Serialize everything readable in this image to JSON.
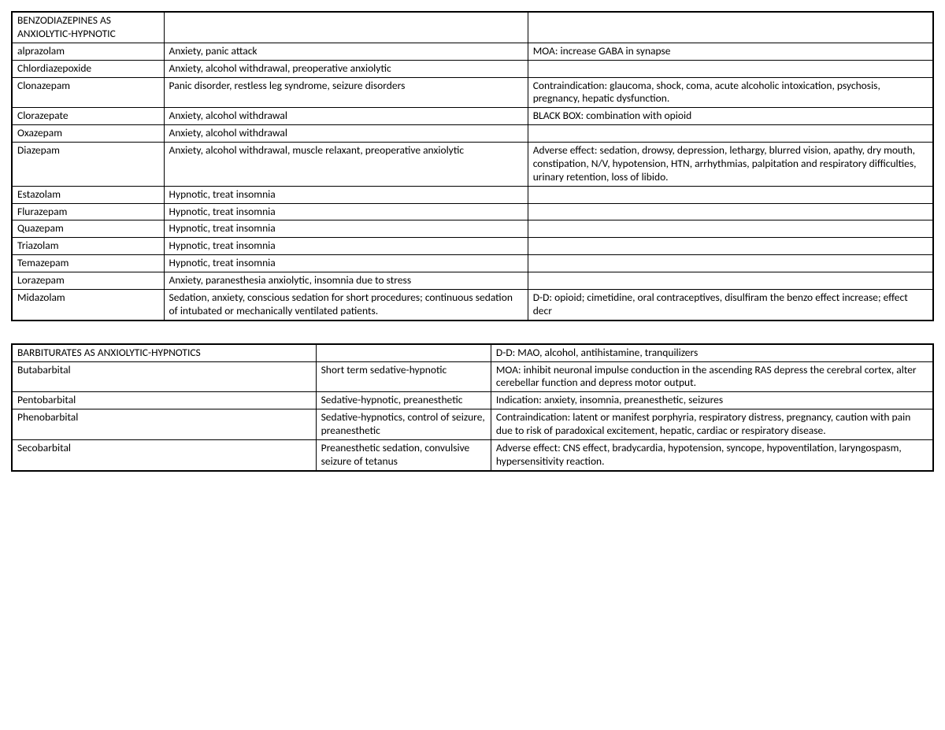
{
  "table1": {
    "col_widths": [
      "16.5%",
      "39.5%",
      "44%"
    ],
    "rows": [
      [
        "BENZODIAZEPINES AS ANXIOLYTIC-HYPNOTIC",
        "",
        ""
      ],
      [
        "alprazolam",
        "Anxiety, panic attack",
        "MOA: increase GABA in synapse"
      ],
      [
        "Chlordiazepoxide",
        "Anxiety, alcohol withdrawal, preoperative anxiolytic",
        ""
      ],
      [
        "Clonazepam",
        "Panic disorder, restless leg syndrome, seizure disorders",
        "Contraindication: glaucoma, shock, coma, acute alcoholic intoxication, psychosis, pregnancy, hepatic dysfunction."
      ],
      [
        "Clorazepate",
        "Anxiety, alcohol withdrawal",
        "BLACK BOX: combination with opioid"
      ],
      [
        "Oxazepam",
        "Anxiety, alcohol withdrawal",
        ""
      ],
      [
        "Diazepam",
        "Anxiety, alcohol withdrawal, muscle relaxant, preoperative anxiolytic",
        "Adverse effect: sedation, drowsy, depression, lethargy, blurred vision, apathy, dry mouth, constipation, N/V, hypotension, HTN, arrhythmias, palpitation and respiratory difficulties, urinary retention, loss of libido."
      ],
      [
        "Estazolam",
        "Hypnotic, treat insomnia",
        ""
      ],
      [
        "Flurazepam",
        "Hypnotic, treat insomnia",
        ""
      ],
      [
        "Quazepam",
        "Hypnotic, treat insomnia",
        ""
      ],
      [
        "Triazolam",
        "Hypnotic, treat insomnia",
        ""
      ],
      [
        "Temazepam",
        "Hypnotic, treat insomnia",
        ""
      ],
      [
        "Lorazepam",
        "Anxiety, paranesthesia anxiolytic, insomnia due to stress",
        ""
      ],
      [
        "Midazolam",
        "Sedation, anxiety, conscious sedation for short procedures; continuous sedation of intubated or mechanically ventilated patients.",
        "D-D: opioid; cimetidine, oral contraceptives, disulfiram the benzo effect increase; effect decr"
      ]
    ]
  },
  "table2": {
    "col_widths": [
      "33%",
      "19%",
      "48%"
    ],
    "rows": [
      [
        "BARBITURATES AS ANXIOLYTIC-HYPNOTICS",
        "",
        "D-D: MAO, alcohol, antihistamine, tranquilizers"
      ],
      [
        "Butabarbital",
        "Short term sedative-hypnotic",
        "MOA: inhibit neuronal impulse conduction in the ascending RAS depress the cerebral cortex, alter cerebellar function and depress motor output."
      ],
      [
        "Pentobarbital",
        "Sedative-hypnotic, preanesthetic",
        "Indication: anxiety, insomnia, preanesthetic, seizures"
      ],
      [
        "Phenobarbital",
        "Sedative-hypnotics, control of seizure, preanesthetic",
        "Contraindication: latent or manifest porphyria, respiratory distress, pregnancy, caution with pain due to risk of paradoxical excitement, hepatic, cardiac or respiratory disease."
      ],
      [
        "Secobarbital",
        "Preanesthetic sedation, convulsive seizure of tetanus",
        "Adverse effect: CNS effect, bradycardia, hypotension, syncope, hypoventilation, laryngospasm, hypersensitivity reaction."
      ]
    ]
  }
}
